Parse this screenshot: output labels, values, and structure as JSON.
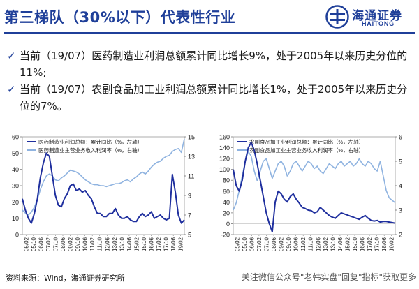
{
  "slide": {
    "title": "第三梯队（30%以下）代表性行业",
    "logo_cn": "海通证券",
    "logo_en": "HAITONG"
  },
  "bullets": [
    "当前（19/07）医药制造业利润总额累计同比增长9%，处于2005年以来历史分位的11%;",
    "当前（19/07）农副食品加工业利润总额累计同比增长1%，处于2005年以来历史分位的7%。"
  ],
  "colors": {
    "accent": "#1f3f99",
    "series_dark": "#1f2f9e",
    "series_light": "#8fb3e0"
  },
  "chart_data": [
    {
      "type": "line",
      "x_tick_labels": [
        "05/02",
        "05/10",
        "06/06",
        "07/02",
        "07/10",
        "08/06",
        "09/02",
        "09/10",
        "10/06",
        "11/02",
        "11/10",
        "12/06",
        "13/02",
        "13/10",
        "14/06",
        "15/02",
        "15/10",
        "16/06",
        "17/02",
        "17/10",
        "18/06",
        "19/02"
      ],
      "y_left": {
        "ticks": [
          "60",
          "50",
          "40",
          "30",
          "20",
          "10",
          "0"
        ],
        "range": [
          0,
          60
        ]
      },
      "y_right": {
        "ticks": [
          "15",
          "13",
          "11",
          "9",
          "7",
          "5"
        ],
        "range": [
          5,
          15
        ]
      },
      "series": [
        {
          "name": "医药制造业利润总额：累计同比（%，左轴）",
          "axis": "left",
          "color": "#1f2f9e",
          "values": [
            22,
            15,
            10,
            7,
            13,
            22,
            35,
            44,
            50,
            48,
            36,
            24,
            18,
            17,
            22,
            25,
            30,
            31,
            27,
            28,
            26,
            27,
            24,
            22,
            17,
            13,
            13,
            11,
            11,
            13,
            13,
            16,
            12,
            10,
            10,
            11,
            9,
            8,
            8,
            11,
            13,
            11,
            12,
            14,
            10,
            11,
            12,
            10,
            9,
            10,
            37,
            26,
            12,
            7,
            9
          ]
        },
        {
          "name": "医药制造业主营业务收入利润率（%，右轴）",
          "axis": "right",
          "color": "#8fb3e0",
          "values": [
            7.5,
            7.2,
            7.0,
            7.3,
            7.8,
            8.6,
            9.6,
            10.4,
            11.0,
            11.2,
            11.0,
            10.6,
            10.5,
            10.8,
            11.0,
            11.3,
            11.6,
            11.5,
            11.4,
            11.2,
            10.9,
            10.6,
            10.4,
            10.2,
            10.1,
            10.1,
            10.0,
            10.0,
            9.9,
            10.0,
            10.1,
            10.2,
            10.2,
            10.3,
            10.5,
            10.6,
            10.4,
            10.7,
            10.9,
            11.2,
            11.4,
            11.2,
            11.5,
            11.9,
            12.2,
            12.4,
            12.5,
            12.8,
            13.0,
            13.1,
            13.5,
            13.7,
            13.8,
            13.4,
            14.8
          ]
        }
      ]
    },
    {
      "type": "line",
      "x_tick_labels": [
        "05/02",
        "05/10",
        "06/06",
        "07/02",
        "07/10",
        "08/06",
        "09/02",
        "09/10",
        "10/06",
        "11/02",
        "11/10",
        "12/06",
        "13/02",
        "13/10",
        "14/06",
        "15/02",
        "15/10",
        "16/06",
        "17/02",
        "17/10",
        "18/06",
        "19/02"
      ],
      "y_left": {
        "ticks": [
          "160",
          "140",
          "120",
          "100",
          "80",
          "60",
          "40",
          "20",
          "0",
          "-20"
        ],
        "range": [
          -20,
          160
        ]
      },
      "y_right": {
        "ticks": [
          "6",
          "5",
          "4",
          "3",
          "2"
        ],
        "range": [
          2,
          6
        ]
      },
      "series": [
        {
          "name": "农副食品加工业利润总额：累计同比（%，左轴）",
          "axis": "left",
          "color": "#1f2f9e",
          "values": [
            100,
            70,
            60,
            80,
            115,
            140,
            150,
            135,
            110,
            80,
            50,
            20,
            0,
            -15,
            40,
            60,
            55,
            45,
            40,
            50,
            55,
            45,
            38,
            30,
            28,
            25,
            24,
            20,
            22,
            30,
            25,
            20,
            15,
            12,
            10,
            15,
            20,
            18,
            16,
            14,
            12,
            10,
            8,
            12,
            15,
            10,
            6,
            5,
            6,
            3,
            4,
            4,
            3,
            2,
            1
          ]
        },
        {
          "name": "农副食品加工业主营业务收入利润率（%，右轴）",
          "axis": "right",
          "color": "#8fb3e0",
          "values": [
            3.0,
            3.3,
            3.8,
            4.4,
            5.0,
            5.4,
            5.2,
            4.6,
            4.2,
            4.6,
            5.0,
            5.1,
            4.7,
            4.3,
            4.6,
            4.9,
            5.0,
            4.8,
            4.4,
            4.6,
            4.9,
            5.0,
            4.8,
            4.6,
            4.8,
            5.0,
            4.9,
            4.7,
            4.8,
            4.6,
            4.5,
            4.7,
            4.9,
            4.8,
            4.7,
            4.9,
            5.0,
            4.8,
            4.9,
            5.0,
            4.8,
            4.9,
            5.1,
            4.9,
            4.8,
            5.0,
            4.9,
            4.7,
            4.6,
            5.0,
            4.4,
            3.8,
            3.5,
            3.4,
            3.3
          ]
        }
      ]
    }
  ],
  "footer": {
    "source": "资料来源：Wind，海通证券研究所",
    "watermark": "关注微信公众号\"老韩实盘\"回复\"指标\"获取更多"
  }
}
